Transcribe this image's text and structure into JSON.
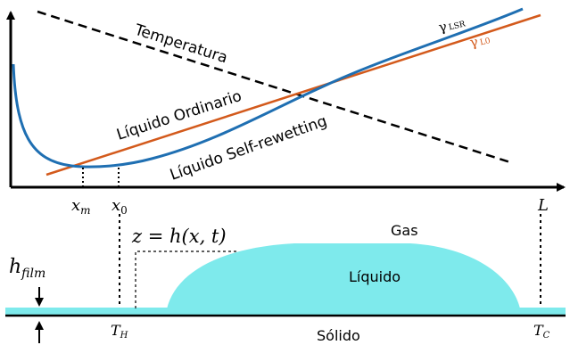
{
  "top_plot": {
    "temperature_label": "Temperatura",
    "ordinary_label": "Líquido Ordinario",
    "selfrewet_label": "Líquido Self-rewetting",
    "gamma_lsr_symbol": "γ",
    "gamma_lsr_sub": "LSR",
    "gamma_l0_symbol": "γ",
    "gamma_l0_sub": "L0",
    "xm_base": "x",
    "xm_sub": "m",
    "x0_base": "x",
    "x0_sub": "0",
    "L_label": "L",
    "colors": {
      "temperature": "#000000",
      "ordinary": "#d35a1c",
      "selfrewet": "#1f6fb2"
    }
  },
  "bottom_scene": {
    "eq_label": "z = h(x, t)",
    "hfilm_base": "h",
    "hfilm_sub": "film",
    "gas_label": "Gas",
    "liquid_label": "Líquido",
    "solid_label": "Sólido",
    "th_base": "T",
    "th_sub": "H",
    "tc_base": "T",
    "tc_sub": "C",
    "colors": {
      "liquid": "#7eeaec"
    }
  }
}
